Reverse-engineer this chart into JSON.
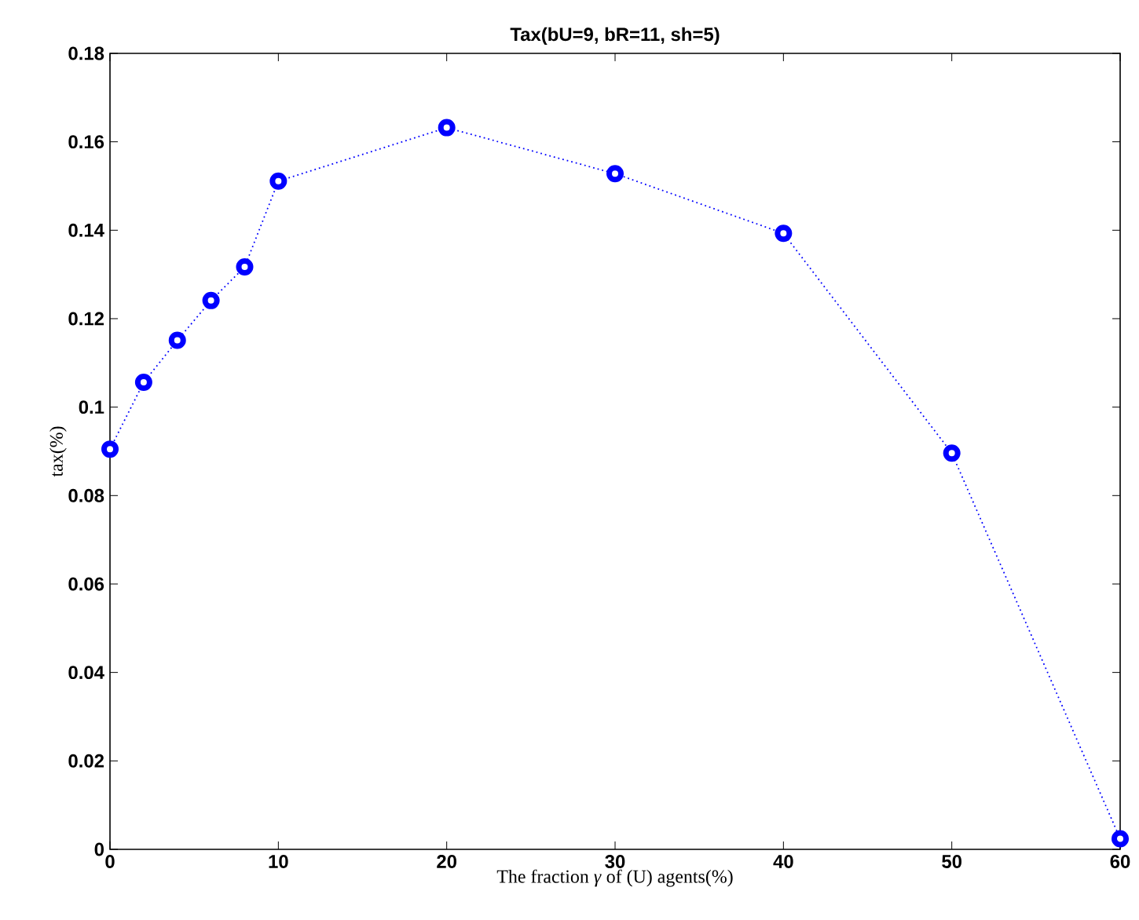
{
  "chart_data": {
    "type": "line",
    "title": "Tax(bU=9, bR=11, sh=5)",
    "xlabel": "The fraction *γ* of (U) agents(%)",
    "ylabel": "tax(%)",
    "x": [
      0,
      2,
      4,
      6,
      8,
      10,
      20,
      30,
      40,
      50,
      60
    ],
    "series": [
      {
        "color": "#0000ff",
        "values": [
          0.0905,
          0.1056,
          0.1151,
          0.1241,
          0.1317,
          0.1511,
          0.1632,
          0.1528,
          0.1393,
          0.0896,
          0.0024
        ]
      }
    ],
    "xlim": [
      0,
      60
    ],
    "ylim": [
      0,
      0.18
    ],
    "xticks": [
      0,
      10,
      20,
      30,
      40,
      50,
      60
    ],
    "yticks": [
      0,
      0.02,
      0.04,
      0.06,
      0.08,
      0.1,
      0.12,
      0.14,
      0.16,
      0.18
    ],
    "marker": "circle",
    "line_style": "dotted"
  }
}
